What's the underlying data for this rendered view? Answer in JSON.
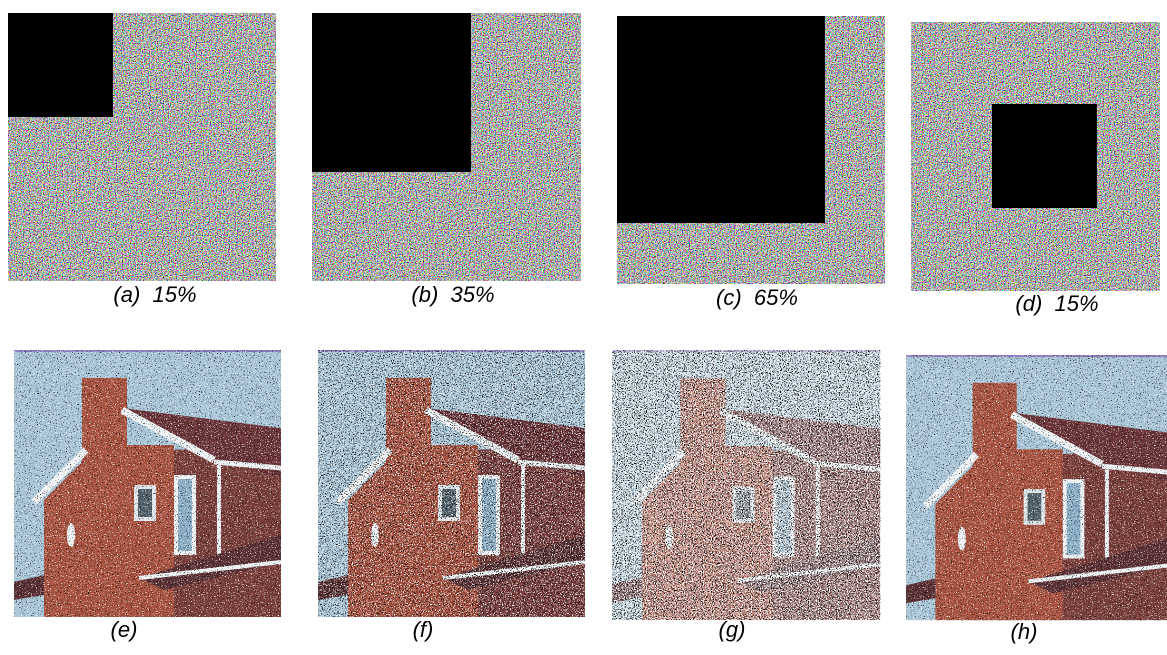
{
  "panels": [
    {
      "caption": "(a)  15%"
    },
    {
      "caption": "(b)  35%"
    },
    {
      "caption": "(c)  65%"
    },
    {
      "caption": "(d)  15%"
    },
    {
      "caption": "(e)"
    },
    {
      "caption": "(f)"
    },
    {
      "caption": "(g)"
    },
    {
      "caption": "(h)"
    }
  ]
}
